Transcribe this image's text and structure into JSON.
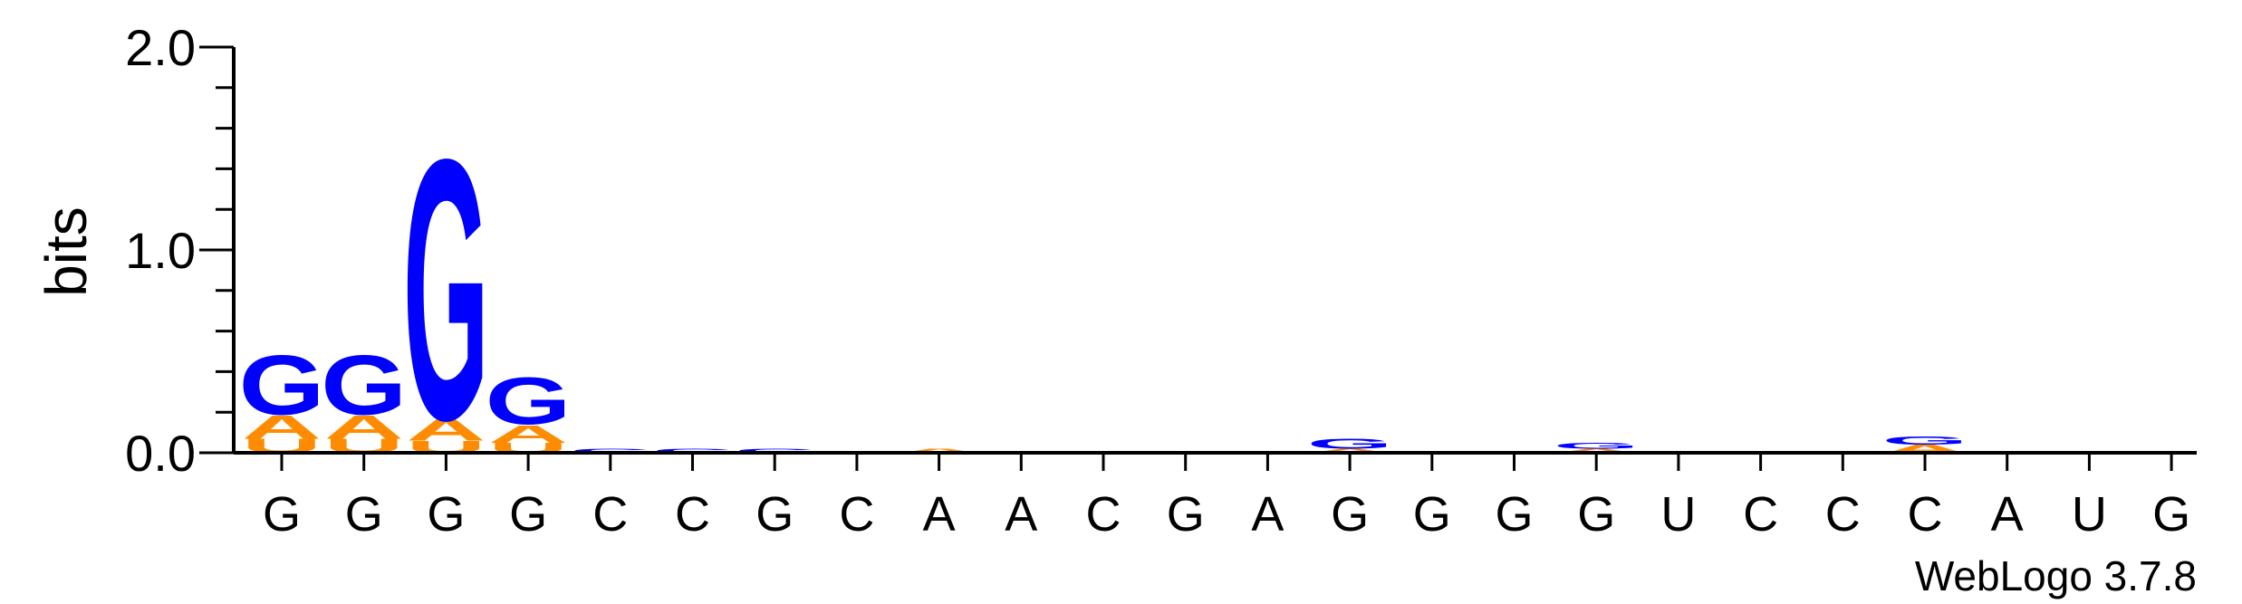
{
  "chart_data": {
    "type": "sequence-logo",
    "ylabel": "bits",
    "ylim": [
      0,
      2.0
    ],
    "yticks": [
      "0.0",
      "1.0",
      "2.0"
    ],
    "positions": [
      "G",
      "G",
      "G",
      "G",
      "C",
      "C",
      "G",
      "C",
      "A",
      "A",
      "C",
      "G",
      "A",
      "G",
      "G",
      "G",
      "G",
      "U",
      "C",
      "C",
      "C",
      "A",
      "U",
      "G"
    ],
    "colors": {
      "G": "#0000ff",
      "A": "#ff8c00",
      "U": "#ff8c00",
      "C": "#0000ff"
    },
    "stacks": [
      [
        {
          "l": "U",
          "v": 0.07
        },
        {
          "l": "A",
          "v": 0.12
        },
        {
          "l": "G",
          "v": 0.3
        }
      ],
      [
        {
          "l": "U",
          "v": 0.07
        },
        {
          "l": "A",
          "v": 0.12
        },
        {
          "l": "G",
          "v": 0.3
        }
      ],
      [
        {
          "l": "U",
          "v": 0.06
        },
        {
          "l": "A",
          "v": 0.11
        },
        {
          "l": "G",
          "v": 1.32
        }
      ],
      [
        {
          "l": "U",
          "v": 0.05
        },
        {
          "l": "A",
          "v": 0.09
        },
        {
          "l": "G",
          "v": 0.24
        }
      ],
      [
        {
          "l": "C",
          "v": 0.02
        }
      ],
      [
        {
          "l": "C",
          "v": 0.02
        }
      ],
      [
        {
          "l": "C",
          "v": 0.02
        }
      ],
      [
        {
          "l": "A",
          "v": 0.01
        }
      ],
      [
        {
          "l": "A",
          "v": 0.02
        }
      ],
      [],
      [],
      [
        {
          "l": "A",
          "v": 0.01
        }
      ],
      [],
      [
        {
          "l": "A",
          "v": 0.02
        },
        {
          "l": "G",
          "v": 0.05
        }
      ],
      [],
      [
        {
          "l": "C",
          "v": 0.01
        }
      ],
      [
        {
          "l": "A",
          "v": 0.02
        },
        {
          "l": "G",
          "v": 0.03
        }
      ],
      [
        {
          "l": "A",
          "v": 0.01
        }
      ],
      [],
      [],
      [
        {
          "l": "A",
          "v": 0.04
        },
        {
          "l": "G",
          "v": 0.04
        }
      ],
      [],
      [
        {
          "l": "A",
          "v": 0.01
        }
      ],
      []
    ]
  },
  "credit": "WebLogo 3.7.8"
}
